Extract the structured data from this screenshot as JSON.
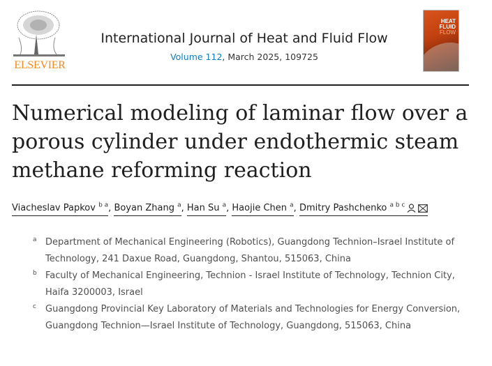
{
  "publisher": {
    "logo_text": "ELSEVIER"
  },
  "journal": {
    "name": "International Journal of Heat and Fluid Flow",
    "volume_link": "Volume 112",
    "issue_info": ", March 2025, 109725",
    "cover_title_lines": [
      "HEAT",
      "FLUID",
      "FLOW"
    ]
  },
  "article": {
    "title": "Numerical modeling of laminar flow over a porous cylinder under endothermic steam methane reforming reaction",
    "authors": [
      {
        "name": "Viacheslav Papkov",
        "sup": "b a"
      },
      {
        "name": "Boyan Zhang",
        "sup": "a"
      },
      {
        "name": "Han Su",
        "sup": "a"
      },
      {
        "name": "Haojie Chen",
        "sup": "a"
      },
      {
        "name": "Dmitry Pashchenko",
        "sup": "a b c"
      }
    ],
    "separator": ", ",
    "affiliations": [
      {
        "label": "a",
        "text": "Department of Mechanical Engineering (Robotics), Guangdong Technion–Israel Institute of Technology, 241 Daxue Road, Guangdong, Shantou, 515063, China"
      },
      {
        "label": "b",
        "text": "Faculty of Mechanical Engineering, Technion - Israel Institute of Technology, Technion City, Haifa 3200003, Israel"
      },
      {
        "label": "c",
        "text": "Guangdong Provincial Key Laboratory of Materials and Technologies for Energy Conversion, Guangdong Technion—Israel Institute of Technology, Guangdong, 515063, China"
      }
    ]
  },
  "colors": {
    "accent": "#0c7dbb",
    "elsevier_orange": "#f28a1e"
  },
  "icons": {
    "author_profile": "person-icon",
    "author_email": "envelope-icon"
  }
}
